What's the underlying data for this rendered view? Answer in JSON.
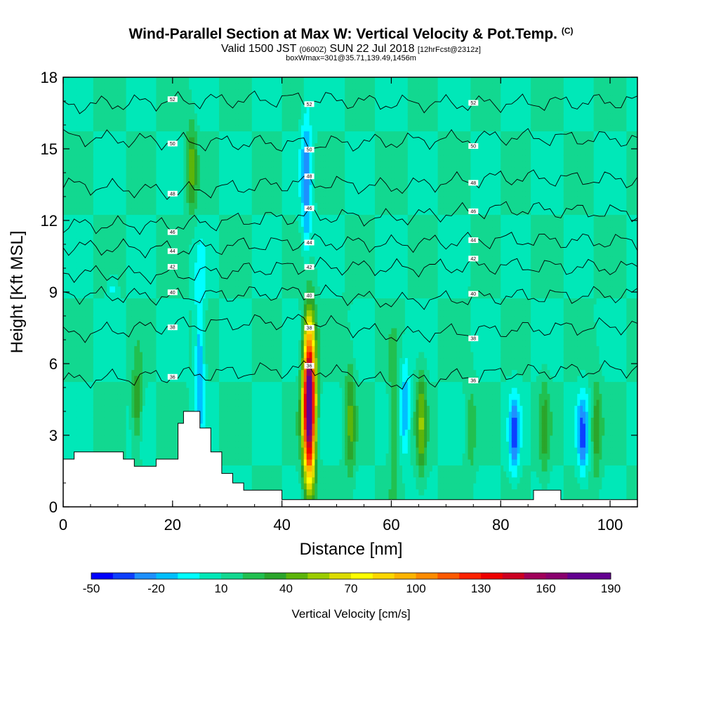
{
  "header": {
    "title_main": "Wind-Parallel Section at Max W: Vertical Velocity & Pot.Temp.",
    "title_mark": "(C)",
    "valid_a": "Valid 1500 JST",
    "valid_b": "(0600Z)",
    "valid_c": "SUN 22 Jul 2018",
    "valid_d": "[12hrFcst@2312z]",
    "box_info": "boxWmax=301@35.71,139.49,1456m"
  },
  "colorbar": {
    "title": "Vertical Velocity [cm/s]",
    "tick_labels": [
      "-50",
      "-20",
      "10",
      "40",
      "70",
      "100",
      "130",
      "160",
      "190"
    ],
    "colors": [
      "#0000ff",
      "#0d3fff",
      "#1e90ff",
      "#00bfff",
      "#00ffff",
      "#00e8b8",
      "#12d890",
      "#21c050",
      "#2ba52b",
      "#5cb50a",
      "#9bcd00",
      "#dcdc00",
      "#ffff00",
      "#ffd700",
      "#ffb400",
      "#ff8c00",
      "#ff5a00",
      "#ff2200",
      "#ee0000",
      "#cc0022",
      "#a0005a",
      "#8a006e",
      "#640090"
    ]
  },
  "contour_labels": [
    "52",
    "50",
    "48",
    "46",
    "44",
    "42",
    "40",
    "38",
    "36"
  ],
  "chart_data": {
    "type": "heatmap",
    "title": "Wind-Parallel Section at Max W: Vertical Velocity & Pot.Temp.",
    "xlabel": "Distance [nm]",
    "ylabel": "Height [Kft MSL]",
    "xlim": [
      0,
      105
    ],
    "ylim": [
      0,
      18
    ],
    "xticks": [
      0,
      20,
      40,
      60,
      80,
      100
    ],
    "yticks": [
      0,
      3,
      6,
      9,
      12,
      15,
      18
    ],
    "background_w": 0,
    "updrafts": [
      {
        "x": 45.0,
        "z0": 0.5,
        "z1": 8.2,
        "peak": 190
      },
      {
        "x": 13.5,
        "z0": 2.5,
        "z1": 6.2,
        "peak": 35
      },
      {
        "x": 23.5,
        "z0": 12.0,
        "z1": 16.5,
        "peak": 35
      },
      {
        "x": 52.5,
        "z0": 0.5,
        "z1": 6.8,
        "peak": 30
      },
      {
        "x": 60.5,
        "z0": 0.5,
        "z1": 7.0,
        "peak": 25
      },
      {
        "x": 65.5,
        "z0": 0.5,
        "z1": 6.5,
        "peak": 35
      },
      {
        "x": 74.5,
        "z0": 0.5,
        "z1": 6.0,
        "peak": 15
      },
      {
        "x": 88.0,
        "z0": 0.5,
        "z1": 6.0,
        "peak": 20
      },
      {
        "x": 97.5,
        "z0": 0.5,
        "z1": 6.0,
        "peak": 25
      }
    ],
    "downdrafts": [
      {
        "x": 44.5,
        "z0": 9.5,
        "z1": 17.5,
        "peak": -35
      },
      {
        "x": 25.0,
        "z0": 2.5,
        "z1": 10.5,
        "peak": -30
      },
      {
        "x": 62.5,
        "z0": 2.0,
        "z1": 6.5,
        "peak": -30
      },
      {
        "x": 82.5,
        "z0": 1.0,
        "z1": 5.0,
        "peak": -40
      },
      {
        "x": 95.0,
        "z0": 1.0,
        "z1": 5.0,
        "peak": -40
      },
      {
        "x": 9.0,
        "z0": 8.5,
        "z1": 10.0,
        "peak": -15
      }
    ],
    "terrain_kft": [
      [
        0,
        2.0
      ],
      [
        2,
        2.3
      ],
      [
        11,
        2.0
      ],
      [
        13,
        1.7
      ],
      [
        17,
        2.0
      ],
      [
        21,
        3.5
      ],
      [
        22,
        4.0
      ],
      [
        25,
        3.3
      ],
      [
        27,
        2.3
      ],
      [
        29,
        1.4
      ],
      [
        31,
        1.0
      ],
      [
        33,
        0.7
      ],
      [
        38,
        0.7
      ],
      [
        40,
        0.3
      ],
      [
        85,
        0.3
      ],
      [
        86,
        0.7
      ],
      [
        90,
        0.7
      ],
      [
        91,
        0.3
      ],
      [
        105,
        0.3
      ]
    ],
    "theta_contours": [
      {
        "label": "36",
        "levels": [
          [
            0,
            5.3
          ],
          [
            20,
            5.5
          ],
          [
            45,
            5.8
          ],
          [
            60,
            5.2
          ],
          [
            80,
            5.6
          ],
          [
            105,
            5.8
          ]
        ]
      },
      {
        "label": "38",
        "levels": [
          [
            0,
            7.2
          ],
          [
            20,
            7.6
          ],
          [
            45,
            7.8
          ],
          [
            60,
            7.2
          ],
          [
            80,
            7.4
          ],
          [
            105,
            7.6
          ]
        ]
      },
      {
        "label": "40",
        "levels": [
          [
            0,
            8.9
          ],
          [
            20,
            8.8
          ],
          [
            45,
            9.0
          ],
          [
            60,
            8.6
          ],
          [
            80,
            8.8
          ],
          [
            105,
            8.9
          ]
        ]
      },
      {
        "label": "42",
        "levels": [
          [
            0,
            9.8
          ],
          [
            20,
            9.7
          ],
          [
            45,
            10.1
          ],
          [
            60,
            10.0
          ],
          [
            80,
            10.1
          ],
          [
            105,
            10.0
          ]
        ]
      },
      {
        "label": "44",
        "levels": [
          [
            0,
            10.9
          ],
          [
            20,
            10.8
          ],
          [
            45,
            11.1
          ],
          [
            60,
            11.0
          ],
          [
            80,
            11.2
          ],
          [
            105,
            11.1
          ]
        ]
      },
      {
        "label": "46",
        "levels": [
          [
            0,
            11.8
          ],
          [
            20,
            11.8
          ],
          [
            45,
            12.2
          ],
          [
            60,
            12.1
          ],
          [
            80,
            12.5
          ],
          [
            105,
            12.3
          ]
        ]
      },
      {
        "label": "48",
        "levels": [
          [
            0,
            13.5
          ],
          [
            20,
            13.2
          ],
          [
            45,
            13.6
          ],
          [
            60,
            13.4
          ],
          [
            80,
            13.8
          ],
          [
            105,
            13.7
          ]
        ]
      },
      {
        "label": "50",
        "levels": [
          [
            0,
            15.5
          ],
          [
            20,
            15.3
          ],
          [
            45,
            15.2
          ],
          [
            60,
            15.3
          ],
          [
            80,
            15.5
          ],
          [
            105,
            15.4
          ]
        ]
      },
      {
        "label": "52",
        "levels": [
          [
            0,
            16.8
          ],
          [
            20,
            17.0
          ],
          [
            45,
            17.1
          ],
          [
            60,
            16.9
          ],
          [
            80,
            16.9
          ],
          [
            105,
            17.0
          ]
        ]
      }
    ]
  }
}
